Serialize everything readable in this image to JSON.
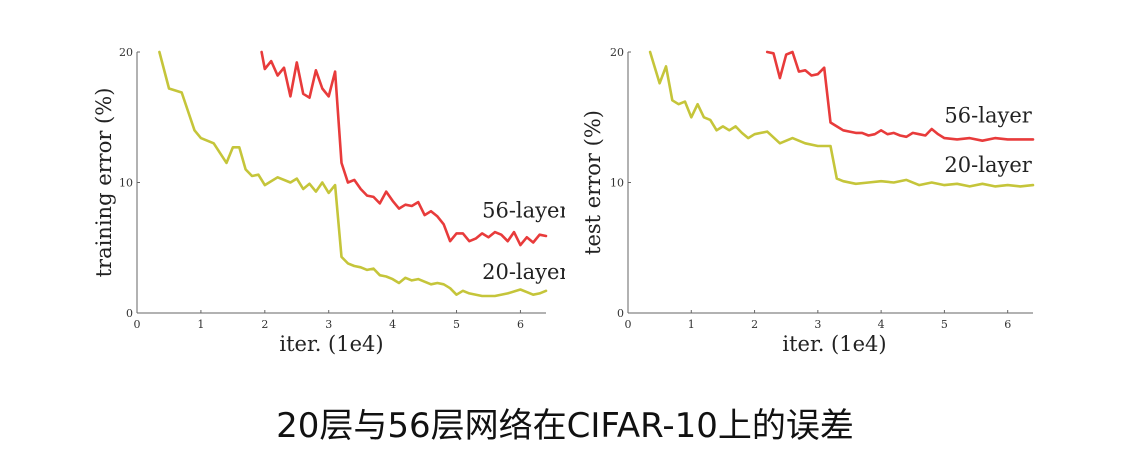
{
  "chart_data": [
    {
      "type": "line",
      "xlabel": "iter. (1e4)",
      "ylabel": "training error (%)",
      "xlim": [
        0,
        6.4
      ],
      "ylim": [
        0,
        20
      ],
      "xticks": [
        "0",
        "1",
        "2",
        "3",
        "4",
        "5",
        "6"
      ],
      "yticks": [
        "0",
        "10",
        "20"
      ],
      "grid": false,
      "series": [
        {
          "name": "56-layer",
          "color": "#e83b3b",
          "x": [
            1.95,
            2.0,
            2.1,
            2.2,
            2.3,
            2.4,
            2.5,
            2.6,
            2.7,
            2.8,
            2.9,
            3.0,
            3.1,
            3.2,
            3.3,
            3.4,
            3.5,
            3.6,
            3.7,
            3.8,
            3.9,
            4.0,
            4.1,
            4.2,
            4.3,
            4.4,
            4.5,
            4.6,
            4.7,
            4.8,
            4.9,
            5.0,
            5.1,
            5.2,
            5.3,
            5.4,
            5.5,
            5.6,
            5.7,
            5.8,
            5.9,
            6.0,
            6.1,
            6.2,
            6.3,
            6.4
          ],
          "y": [
            20.0,
            18.7,
            19.3,
            18.2,
            18.8,
            16.6,
            19.2,
            16.8,
            16.5,
            18.6,
            17.2,
            16.6,
            18.5,
            11.5,
            10.0,
            10.2,
            9.5,
            9.0,
            8.9,
            8.4,
            9.3,
            8.6,
            8.0,
            8.3,
            8.2,
            8.5,
            7.5,
            7.8,
            7.4,
            6.8,
            5.5,
            6.1,
            6.1,
            5.5,
            5.7,
            6.1,
            5.8,
            6.2,
            6.0,
            5.5,
            6.2,
            5.2,
            5.8,
            5.4,
            6.0,
            5.9
          ]
        },
        {
          "name": "20-layer",
          "color": "#c5c53a",
          "x": [
            0.35,
            0.5,
            0.7,
            0.9,
            1.0,
            1.2,
            1.4,
            1.5,
            1.6,
            1.7,
            1.8,
            1.9,
            2.0,
            2.2,
            2.4,
            2.5,
            2.6,
            2.7,
            2.8,
            2.9,
            3.0,
            3.1,
            3.2,
            3.3,
            3.4,
            3.5,
            3.6,
            3.7,
            3.8,
            3.9,
            4.0,
            4.1,
            4.2,
            4.3,
            4.4,
            4.5,
            4.6,
            4.7,
            4.8,
            4.9,
            5.0,
            5.1,
            5.2,
            5.4,
            5.6,
            5.8,
            6.0,
            6.1,
            6.2,
            6.3,
            6.4
          ],
          "y": [
            20.0,
            17.2,
            16.9,
            14.0,
            13.4,
            13.0,
            11.5,
            12.7,
            12.7,
            11.0,
            10.5,
            10.6,
            9.8,
            10.4,
            10.0,
            10.3,
            9.5,
            9.9,
            9.3,
            10.0,
            9.2,
            9.8,
            4.3,
            3.8,
            3.6,
            3.5,
            3.3,
            3.4,
            2.9,
            2.8,
            2.6,
            2.3,
            2.7,
            2.5,
            2.6,
            2.4,
            2.2,
            2.3,
            2.2,
            1.9,
            1.4,
            1.7,
            1.5,
            1.3,
            1.3,
            1.5,
            1.8,
            1.6,
            1.4,
            1.5,
            1.7
          ]
        }
      ],
      "labels": [
        {
          "text": "56-layer",
          "x": 5.4,
          "y": 7.3
        },
        {
          "text": "20-layer",
          "x": 5.4,
          "y": 2.6
        }
      ]
    },
    {
      "type": "line",
      "xlabel": "iter. (1e4)",
      "ylabel": "test error (%)",
      "xlim": [
        0,
        6.4
      ],
      "ylim": [
        0,
        20
      ],
      "xticks": [
        "0",
        "1",
        "2",
        "3",
        "4",
        "5",
        "6"
      ],
      "yticks": [
        "0",
        "10",
        "20"
      ],
      "grid": false,
      "series": [
        {
          "name": "56-layer",
          "color": "#e83b3b",
          "x": [
            2.2,
            2.3,
            2.4,
            2.5,
            2.6,
            2.7,
            2.8,
            2.9,
            3.0,
            3.1,
            3.2,
            3.3,
            3.4,
            3.5,
            3.6,
            3.7,
            3.8,
            3.9,
            4.0,
            4.1,
            4.2,
            4.3,
            4.4,
            4.5,
            4.6,
            4.7,
            4.8,
            4.9,
            5.0,
            5.2,
            5.4,
            5.6,
            5.8,
            6.0,
            6.2,
            6.4
          ],
          "y": [
            20.0,
            19.9,
            18.0,
            19.8,
            20.0,
            18.5,
            18.6,
            18.2,
            18.3,
            18.8,
            14.6,
            14.3,
            14.0,
            13.9,
            13.8,
            13.8,
            13.6,
            13.7,
            14.0,
            13.7,
            13.8,
            13.6,
            13.5,
            13.8,
            13.7,
            13.6,
            14.1,
            13.7,
            13.4,
            13.3,
            13.4,
            13.2,
            13.4,
            13.3,
            13.3,
            13.3
          ]
        },
        {
          "name": "20-layer",
          "color": "#c5c53a",
          "x": [
            0.35,
            0.5,
            0.6,
            0.7,
            0.8,
            0.9,
            1.0,
            1.1,
            1.2,
            1.3,
            1.4,
            1.5,
            1.6,
            1.7,
            1.8,
            1.9,
            2.0,
            2.2,
            2.4,
            2.6,
            2.8,
            3.0,
            3.2,
            3.3,
            3.4,
            3.6,
            3.8,
            4.0,
            4.2,
            4.4,
            4.6,
            4.8,
            5.0,
            5.2,
            5.4,
            5.6,
            5.8,
            6.0,
            6.2,
            6.4
          ],
          "y": [
            20.0,
            17.6,
            18.9,
            16.3,
            16.0,
            16.2,
            15.0,
            16.0,
            15.0,
            14.8,
            14.0,
            14.3,
            14.0,
            14.3,
            13.8,
            13.4,
            13.7,
            13.9,
            13.0,
            13.4,
            13.0,
            12.8,
            12.8,
            10.3,
            10.1,
            9.9,
            10.0,
            10.1,
            10.0,
            10.2,
            9.8,
            10.0,
            9.8,
            9.9,
            9.7,
            9.9,
            9.7,
            9.8,
            9.7,
            9.8
          ]
        }
      ],
      "labels": [
        {
          "text": "56-layer",
          "x": 5.0,
          "y": 14.6
        },
        {
          "text": "20-layer",
          "x": 5.0,
          "y": 10.8
        }
      ]
    }
  ],
  "caption": "20层与56层网络在CIFAR-10上的误差"
}
